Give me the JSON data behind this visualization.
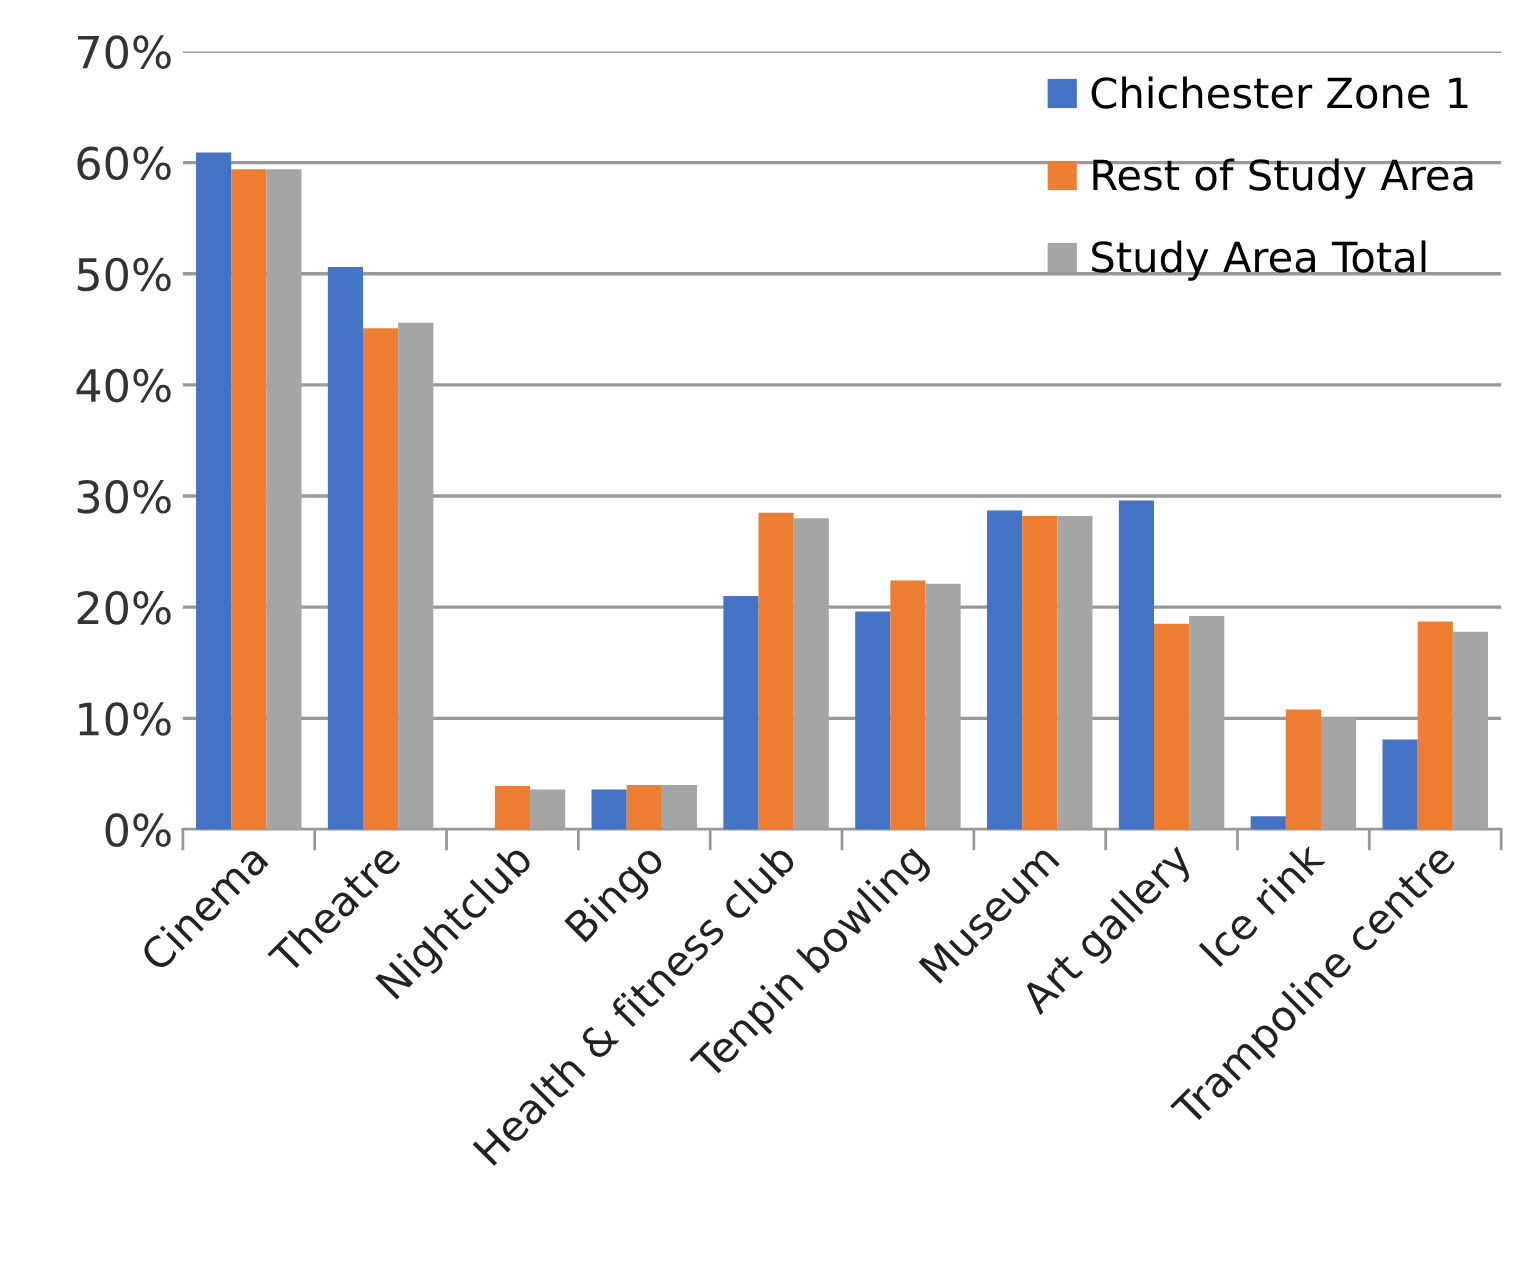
{
  "chart_data": {
    "type": "bar",
    "categories": [
      "Cinema",
      "Theatre",
      "Nightclub",
      "Bingo",
      "Health & fitness club",
      "Tenpin bowling",
      "Museum",
      "Art gallery",
      "Ice rink",
      "Trampoline centre"
    ],
    "series": [
      {
        "name": "Chichester Zone 1",
        "color": "#4472c4",
        "values": [
          60.9,
          50.6,
          0,
          3.6,
          21.0,
          19.6,
          28.7,
          29.6,
          1.2,
          8.1
        ]
      },
      {
        "name": "Rest of Study Area",
        "color": "#ed7d31",
        "values": [
          59.4,
          45.1,
          3.9,
          4.0,
          28.5,
          22.4,
          28.2,
          18.5,
          10.8,
          18.7
        ]
      },
      {
        "name": "Study Area Total",
        "color": "#a5a5a5",
        "values": [
          59.4,
          45.6,
          3.6,
          4.0,
          28.0,
          22.1,
          28.2,
          19.2,
          10.1,
          17.8
        ]
      }
    ],
    "ylim": [
      0,
      70
    ],
    "yticks": [
      {
        "value": 0,
        "label": "0%"
      },
      {
        "value": 10,
        "label": "10%"
      },
      {
        "value": 20,
        "label": "20%"
      },
      {
        "value": 30,
        "label": "30%"
      },
      {
        "value": 40,
        "label": "40%"
      },
      {
        "value": 50,
        "label": "50%"
      },
      {
        "value": 60,
        "label": "60%"
      },
      {
        "value": 70,
        "label": "70%"
      }
    ],
    "grid": "y",
    "legend": "top right"
  }
}
